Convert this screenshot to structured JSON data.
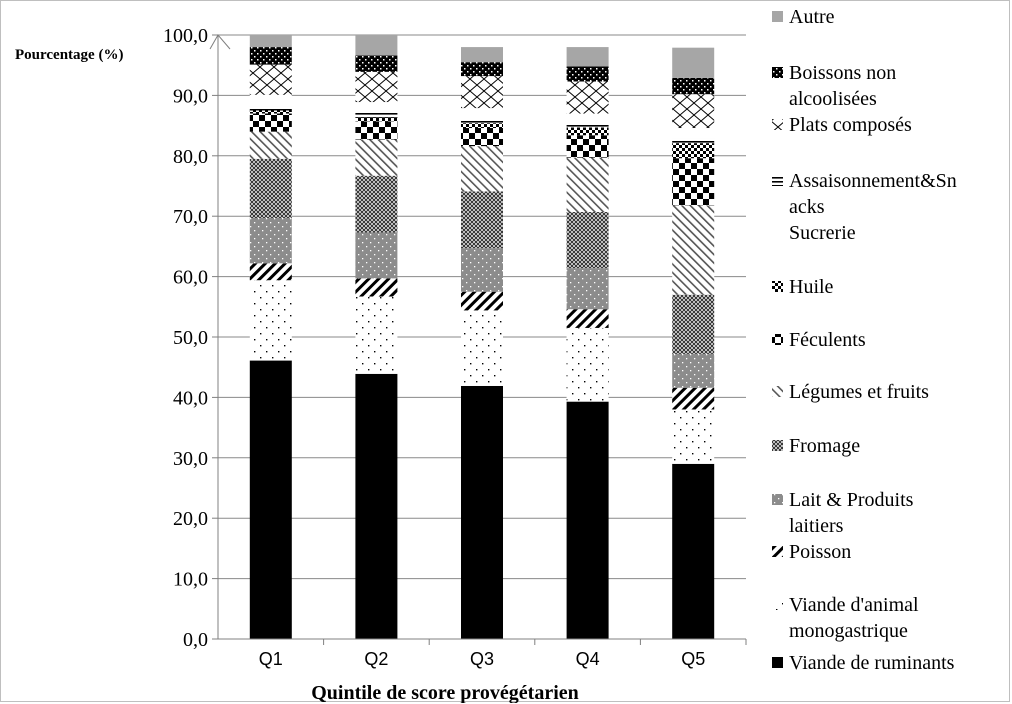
{
  "chart_data": {
    "type": "bar",
    "stacked": true,
    "xlabel": "Quintile de score provégétarien",
    "ylabel": "Pourcentage (%)",
    "ylim": [
      0,
      100
    ],
    "yticks": [
      "0,0",
      "10,0",
      "20,0",
      "30,0",
      "40,0",
      "50,0",
      "60,0",
      "70,0",
      "80,0",
      "90,0",
      "100,0"
    ],
    "categories": [
      "Q1",
      "Q2",
      "Q3",
      "Q4",
      "Q5"
    ],
    "grid": true,
    "legend_position": "right",
    "series": [
      {
        "name": "Viande de ruminants",
        "pattern": "solid-black",
        "values": [
          46.1,
          43.9,
          41.9,
          39.3,
          29.0
        ]
      },
      {
        "name": "Viande d'animal monogastrique",
        "pattern": "sparse-dots",
        "values": [
          13.3,
          12.8,
          12.5,
          12.2,
          9.0
        ]
      },
      {
        "name": "Poisson",
        "pattern": "wide-diagonal",
        "values": [
          2.8,
          3.0,
          3.1,
          3.1,
          3.6
        ]
      },
      {
        "name": "Lait & Produits laitiers",
        "pattern": "gray-dots",
        "values": [
          7.5,
          7.6,
          7.2,
          6.8,
          5.6
        ]
      },
      {
        "name": "Fromage",
        "pattern": "dense-checker",
        "values": [
          9.8,
          9.4,
          9.4,
          9.3,
          9.8
        ]
      },
      {
        "name": "Légumes et fruits",
        "pattern": "light-diagonal",
        "values": [
          4.5,
          6.0,
          7.5,
          9.0,
          14.8
        ]
      },
      {
        "name": "Féculents",
        "pattern": "large-checker",
        "values": [
          3.0,
          3.0,
          3.0,
          3.7,
          7.8
        ]
      },
      {
        "name": "Huile",
        "pattern": "small-checker",
        "values": [
          0.5,
          0.6,
          0.8,
          1.3,
          2.5
        ]
      },
      {
        "name": "Assaisonnement&Snacks",
        "pattern": "horizontal-lines",
        "values": [
          0.6,
          0.8,
          0.7,
          0.6,
          0.7
        ]
      },
      {
        "name": "Sucrerie",
        "pattern": "white",
        "values": [
          2.0,
          1.8,
          1.8,
          1.7,
          1.8
        ]
      },
      {
        "name": "Plats composés",
        "pattern": "zigzag",
        "values": [
          5.0,
          5.0,
          5.3,
          5.3,
          5.6
        ]
      },
      {
        "name": "Boissons non alcoolisées",
        "pattern": "black-white-dots",
        "values": [
          2.9,
          2.7,
          2.3,
          2.5,
          2.7
        ]
      },
      {
        "name": "Autre",
        "pattern": "solid-gray",
        "values": [
          2.0,
          3.4,
          2.5,
          3.2,
          5.0
        ]
      }
    ],
    "legend": [
      {
        "lines": [
          "Autre"
        ],
        "pattern": "solid-gray"
      },
      {
        "lines": [
          "Boissons non",
          "alcoolisées"
        ],
        "pattern": "black-white-dots"
      },
      {
        "lines": [
          "Plats composés"
        ],
        "pattern": "zigzag"
      },
      {
        "lines": [
          "Assaisonnement&Sn",
          "acks"
        ],
        "pattern": "horizontal-lines"
      },
      {
        "lines": [
          "Sucrerie"
        ],
        "pattern": "none"
      },
      {
        "lines": [
          "Huile"
        ],
        "pattern": "small-checker"
      },
      {
        "lines": [
          "Féculents"
        ],
        "pattern": "large-checker"
      },
      {
        "lines": [
          "Légumes et fruits"
        ],
        "pattern": "light-diagonal"
      },
      {
        "lines": [
          "Fromage"
        ],
        "pattern": "dense-checker"
      },
      {
        "lines": [
          "Lait & Produits",
          "laitiers"
        ],
        "pattern": "gray-dots"
      },
      {
        "lines": [
          "Poisson"
        ],
        "pattern": "wide-diagonal"
      },
      {
        "lines": [
          "Viande d'animal",
          "monogastrique"
        ],
        "pattern": "sparse-dots"
      },
      {
        "lines": [
          "Viande de ruminants"
        ],
        "pattern": "solid-black"
      }
    ]
  }
}
